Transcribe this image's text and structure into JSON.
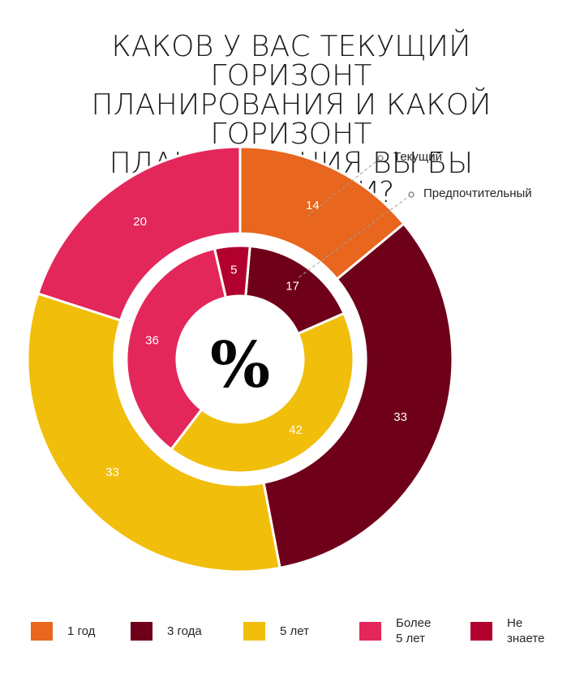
{
  "title": "КАКОВ У ВАС ТЕКУЩИЙ ГОРИЗОНТ\nПЛАНИРОВАНИЯ И КАКОЙ ГОРИЗОНТ\nПЛАНИРОВАНИЯ ВЫ БЫ ПРЕДПОЧЛИ?",
  "chart_data": {
    "type": "pie",
    "subtype": "nested-donut",
    "center_label": "%",
    "categories": [
      "1 год",
      "3 года",
      "5 лет",
      "Более\n5 лет",
      "Не\nзнаете"
    ],
    "colors": [
      "#e8661d",
      "#6f0019",
      "#f1be0b",
      "#e4275b",
      "#b2002e"
    ],
    "series": [
      {
        "name": "Текущий",
        "ring": "outer",
        "values": [
          14,
          33,
          33,
          20,
          0
        ]
      },
      {
        "name": "Предпочтительный",
        "ring": "inner",
        "values": [
          0,
          17,
          42,
          36,
          5
        ]
      }
    ]
  }
}
